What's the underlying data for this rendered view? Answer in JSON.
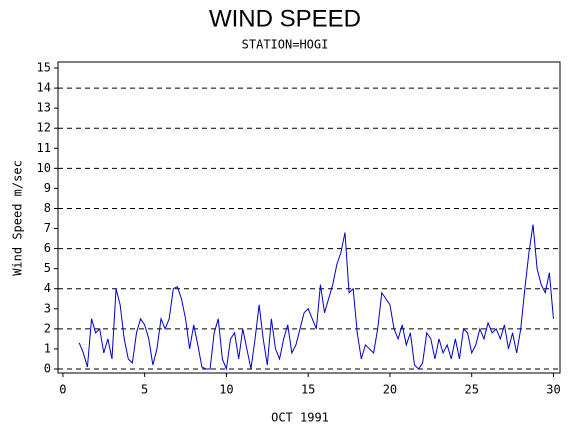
{
  "chart_data": {
    "type": "line",
    "title": "WIND SPEED",
    "subtitle": "STATION=HOGI",
    "x_label": "OCT 1991",
    "y_label": "Wind Speed m/sec",
    "xlim": [
      -0.3,
      30.4
    ],
    "xticks": [
      0,
      5,
      10,
      15,
      20,
      25,
      30
    ],
    "ylim": [
      -0.2,
      15.3
    ],
    "yticks": [
      0,
      1,
      2,
      3,
      4,
      5,
      6,
      7,
      8,
      9,
      10,
      11,
      12,
      13,
      14,
      15
    ],
    "ygrid": [
      0,
      2,
      4,
      6,
      8,
      10,
      12,
      14
    ],
    "series": [
      {
        "name": "Wind Speed",
        "color": "#0000cc",
        "x": [
          1.0,
          1.25,
          1.5,
          1.75,
          2.0,
          2.25,
          2.5,
          2.75,
          3.0,
          3.25,
          3.5,
          3.75,
          4.0,
          4.25,
          4.5,
          4.75,
          5.0,
          5.25,
          5.5,
          5.75,
          6.0,
          6.25,
          6.5,
          6.75,
          7.0,
          7.25,
          7.5,
          7.75,
          8.0,
          8.25,
          8.5,
          8.75,
          9.0,
          9.25,
          9.5,
          9.75,
          10.0,
          10.25,
          10.5,
          10.75,
          11.0,
          11.25,
          11.5,
          11.75,
          12.0,
          12.25,
          12.5,
          12.75,
          13.0,
          13.25,
          13.5,
          13.75,
          14.0,
          14.25,
          14.5,
          14.75,
          15.0,
          15.25,
          15.5,
          15.75,
          16.0,
          16.25,
          16.5,
          16.75,
          17.0,
          17.25,
          17.5,
          17.75,
          18.0,
          18.25,
          18.5,
          18.75,
          19.0,
          19.25,
          19.5,
          19.75,
          20.0,
          20.25,
          20.5,
          20.75,
          21.0,
          21.25,
          21.5,
          21.75,
          22.0,
          22.25,
          22.5,
          22.75,
          23.0,
          23.25,
          23.5,
          23.75,
          24.0,
          24.25,
          24.5,
          24.75,
          25.0,
          25.25,
          25.5,
          25.75,
          26.0,
          26.25,
          26.5,
          26.75,
          27.0,
          27.25,
          27.5,
          27.75,
          28.0,
          28.25,
          28.5,
          28.75,
          29.0,
          29.25,
          29.5,
          29.75,
          30.0
        ],
        "values": [
          1.3,
          0.8,
          0.1,
          2.5,
          1.8,
          2.0,
          0.8,
          1.5,
          0.5,
          4.0,
          3.2,
          1.5,
          0.5,
          0.3,
          1.8,
          2.5,
          2.2,
          1.5,
          0.2,
          1.0,
          2.5,
          2.0,
          2.5,
          4.0,
          4.1,
          3.5,
          2.5,
          1.0,
          2.2,
          1.2,
          0.1,
          0,
          0,
          1.8,
          2.5,
          0.5,
          0,
          1.5,
          1.8,
          0.5,
          2.0,
          1.0,
          0,
          1.5,
          3.2,
          1.5,
          0.2,
          2.5,
          1.0,
          0.5,
          1.5,
          2.2,
          0.8,
          1.2,
          2.0,
          2.8,
          3.0,
          2.5,
          2.0,
          4.2,
          2.8,
          3.5,
          4.2,
          5.2,
          5.8,
          6.8,
          3.8,
          4.0,
          1.8,
          0.5,
          1.2,
          1.0,
          0.8,
          2.0,
          3.8,
          3.5,
          3.2,
          2.0,
          1.5,
          2.2,
          1.2,
          1.8,
          0.2,
          0,
          0.3,
          1.8,
          1.5,
          0.5,
          1.5,
          0.8,
          1.2,
          0.5,
          1.5,
          0.5,
          2.0,
          1.8,
          0.8,
          1.2,
          2.0,
          1.5,
          2.3,
          1.8,
          2.0,
          1.5,
          2.2,
          1.0,
          1.8,
          0.8,
          2.0,
          4.0,
          5.8,
          7.2,
          5.0,
          4.2,
          3.8,
          4.8,
          2.5
        ]
      }
    ]
  }
}
